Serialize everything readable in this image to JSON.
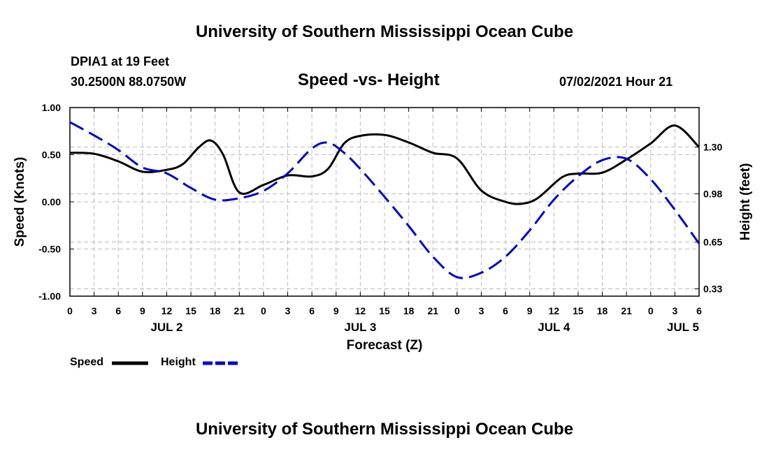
{
  "page": {
    "top_title": "University of Southern Mississippi Ocean Cube",
    "bottom_title": "University of Southern Mississippi Ocean Cube",
    "station": "DPIA1 at 19 Feet",
    "location": "30.2500N  88.0750W",
    "datetime": "07/02/2021 Hour 21"
  },
  "colors": {
    "speed": "#000000",
    "height": "#0000cc",
    "grid": "#bbbbbb"
  },
  "chart_data": {
    "type": "line",
    "title": "Speed -vs- Height",
    "xlabel": "Forecast (Z)",
    "ylabel": "Speed (Knots)",
    "y2label": "Height (feet)",
    "xlim": [
      0,
      78
    ],
    "ylim": [
      -1.0,
      1.0
    ],
    "y2lim": [
      0.28,
      1.57
    ],
    "x_ticks": [
      0,
      3,
      6,
      9,
      12,
      15,
      18,
      21,
      24,
      27,
      30,
      33,
      36,
      39,
      42,
      45,
      48,
      51,
      54,
      57,
      60,
      63,
      66,
      69,
      72,
      75,
      78
    ],
    "x_tick_labels": [
      "0",
      "3",
      "6",
      "9",
      "12",
      "15",
      "18",
      "21",
      "0",
      "3",
      "6",
      "9",
      "12",
      "15",
      "18",
      "21",
      "0",
      "3",
      "6",
      "9",
      "12",
      "15",
      "18",
      "21",
      "0",
      "3",
      "6"
    ],
    "y_ticks": [
      -1.0,
      -0.5,
      0.0,
      0.5,
      1.0
    ],
    "y_tick_labels": [
      "-1.00",
      "-0.50",
      "0.00",
      "0.50",
      "1.00"
    ],
    "y2_ticks": [
      0.33,
      0.65,
      0.98,
      1.3
    ],
    "y2_tick_labels": [
      "0.33",
      "0.65",
      "0.98",
      "1.30"
    ],
    "day_labels": [
      {
        "x": 12,
        "label": "JUL 2"
      },
      {
        "x": 36,
        "label": "JUL 3"
      },
      {
        "x": 60,
        "label": "JUL 4"
      },
      {
        "x": 76,
        "label": "JUL 5"
      }
    ],
    "series": [
      {
        "name": "Speed",
        "axis": "left",
        "style": "solid",
        "x": [
          0,
          3,
          6,
          9,
          12,
          14,
          16,
          17.5,
          19,
          21,
          24,
          27,
          30,
          32,
          34,
          36,
          39,
          42,
          45,
          48,
          51,
          54,
          56,
          58,
          61,
          63,
          66,
          69,
          72,
          75,
          78
        ],
        "values": [
          0.52,
          0.51,
          0.43,
          0.32,
          0.34,
          0.4,
          0.58,
          0.65,
          0.5,
          0.1,
          0.18,
          0.28,
          0.27,
          0.35,
          0.62,
          0.7,
          0.71,
          0.63,
          0.52,
          0.46,
          0.12,
          0.0,
          -0.02,
          0.04,
          0.26,
          0.3,
          0.31,
          0.45,
          0.62,
          0.81,
          0.58
        ]
      },
      {
        "name": "Height",
        "axis": "right",
        "style": "dashed",
        "x": [
          0,
          3,
          6,
          9,
          12,
          15,
          18,
          21,
          24,
          27,
          30,
          32,
          34,
          36,
          39,
          42,
          45,
          48,
          51,
          54,
          57,
          60,
          63,
          66,
          69,
          72,
          75,
          78
        ],
        "values": [
          1.47,
          1.38,
          1.28,
          1.16,
          1.12,
          1.02,
          0.94,
          0.95,
          1.0,
          1.12,
          1.29,
          1.33,
          1.26,
          1.15,
          0.96,
          0.76,
          0.55,
          0.41,
          0.44,
          0.55,
          0.73,
          0.94,
          1.1,
          1.21,
          1.22,
          1.08,
          0.87,
          0.64
        ]
      }
    ],
    "legend": [
      {
        "label": "Speed",
        "style": "solid"
      },
      {
        "label": "Height",
        "style": "dashed"
      }
    ],
    "grid": true
  }
}
